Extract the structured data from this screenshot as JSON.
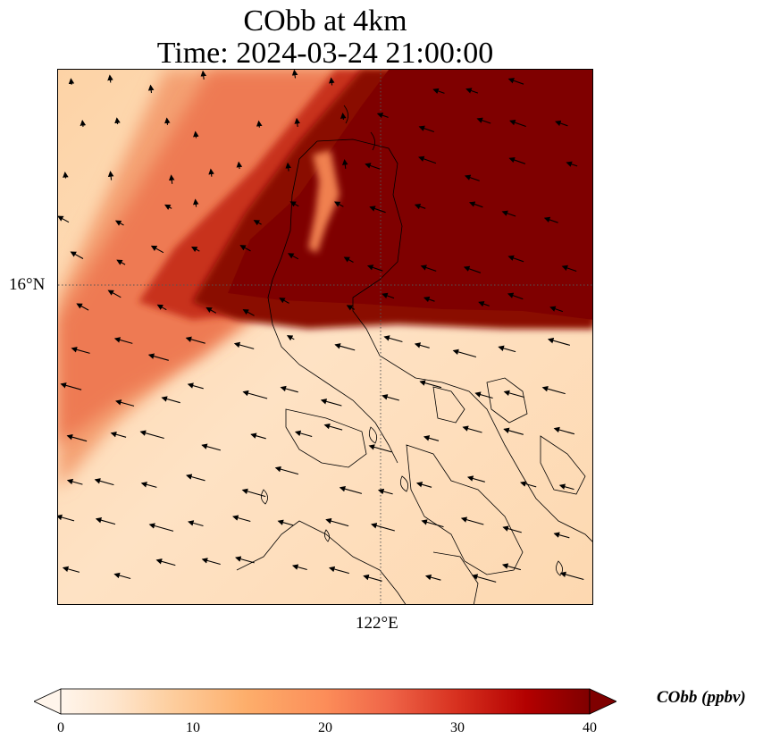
{
  "title": {
    "line1": "CObb at 4km",
    "line2": "Time: 2024-03-24 21:00:00"
  },
  "map": {
    "lat_tick": "16°N",
    "lon_tick": "122°E",
    "gridline_style": "dotted",
    "coastline_color": "#000000",
    "wind_vector_color": "#000000",
    "field_description_colors": {
      "low": "#fff5eb",
      "mid": "#fd8d3c",
      "high": "#7f0000"
    }
  },
  "colorbar": {
    "label": "CObb (ppbv)",
    "ticks": [
      "0",
      "10",
      "20",
      "30",
      "40"
    ],
    "min": 0,
    "max": 40,
    "extend": "both",
    "colormap": [
      "#fff5eb",
      "#fee6ce",
      "#fdd0a2",
      "#fdae6b",
      "#fd8d3c",
      "#f16913",
      "#d94801",
      "#a63603",
      "#7f2704",
      "#7f0000"
    ]
  }
}
